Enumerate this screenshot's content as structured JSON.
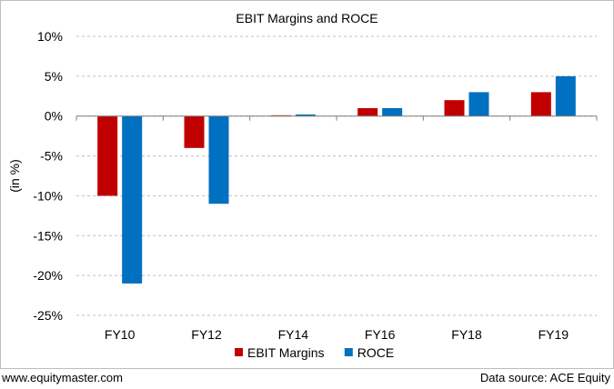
{
  "chart_data": {
    "type": "bar",
    "title": "EBIT Margins and ROCE",
    "ylabel": "(in %)",
    "xlabel": "",
    "categories": [
      "FY10",
      "FY12",
      "FY14",
      "FY16",
      "FY18",
      "FY19"
    ],
    "series": [
      {
        "name": "EBIT Margins",
        "color": "#c00000",
        "values": [
          -10,
          -4,
          0.1,
          1,
          2,
          3
        ]
      },
      {
        "name": "ROCE",
        "color": "#0070c0",
        "values": [
          -21,
          -11,
          0.2,
          1,
          3,
          5
        ]
      }
    ],
    "ylim": [
      -25,
      10
    ],
    "yticks": [
      10,
      5,
      0,
      -5,
      -10,
      -15,
      -20,
      -25
    ],
    "ytick_labels": [
      "10%",
      "5%",
      "0%",
      "-5%",
      "-10%",
      "-15%",
      "-20%",
      "-25%"
    ],
    "grid": true,
    "legend_position": "bottom"
  },
  "footer": {
    "website": "www.equitymaster.com",
    "source": "Data source: ACE Equity"
  }
}
